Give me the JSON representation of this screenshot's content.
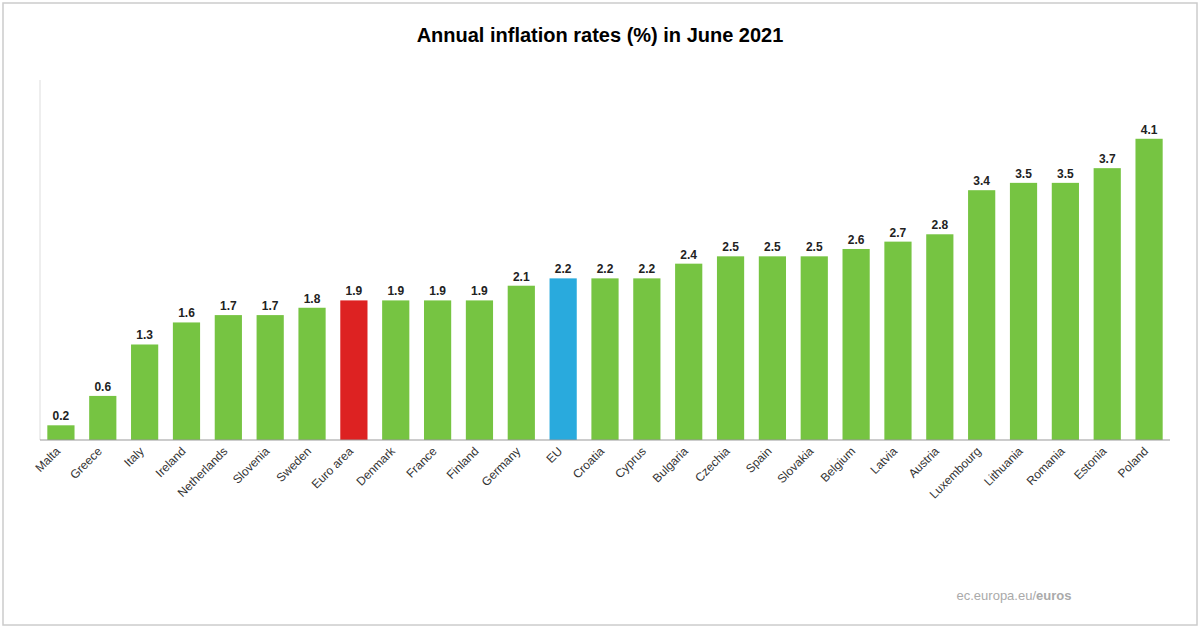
{
  "chart_data": {
    "type": "bar",
    "title": "Annual inflation rates (%) in June 2021",
    "categories": [
      "Malta",
      "Greece",
      "Italy",
      "Ireland",
      "Netherlands",
      "Slovenia",
      "Sweden",
      "Euro area",
      "Denmark",
      "France",
      "Finland",
      "Germany",
      "EU",
      "Croatia",
      "Cyprus",
      "Bulgaria",
      "Czechia",
      "Spain",
      "Slovakia",
      "Belgium",
      "Latvia",
      "Austria",
      "Luxembourg",
      "Lithuania",
      "Romania",
      "Estonia",
      "Poland"
    ],
    "values": [
      0.2,
      0.6,
      1.3,
      1.6,
      1.7,
      1.7,
      1.8,
      1.9,
      1.9,
      1.9,
      1.9,
      2.1,
      2.2,
      2.2,
      2.2,
      2.4,
      2.5,
      2.5,
      2.5,
      2.6,
      2.7,
      2.8,
      3.4,
      3.5,
      3.5,
      3.7,
      4.1
    ],
    "colors": [
      "#76c442",
      "#76c442",
      "#76c442",
      "#76c442",
      "#76c442",
      "#76c442",
      "#76c442",
      "#dd2222",
      "#76c442",
      "#76c442",
      "#76c442",
      "#76c442",
      "#29aadd",
      "#76c442",
      "#76c442",
      "#76c442",
      "#76c442",
      "#76c442",
      "#76c442",
      "#76c442",
      "#76c442",
      "#76c442",
      "#76c442",
      "#76c442",
      "#76c442",
      "#76c442",
      "#76c442"
    ],
    "ylim": [
      0,
      4.9
    ],
    "grid": false,
    "data_labels": true,
    "tick_labels": "x",
    "annotations": [
      "ec.europa.eu/",
      "euros"
    ]
  }
}
